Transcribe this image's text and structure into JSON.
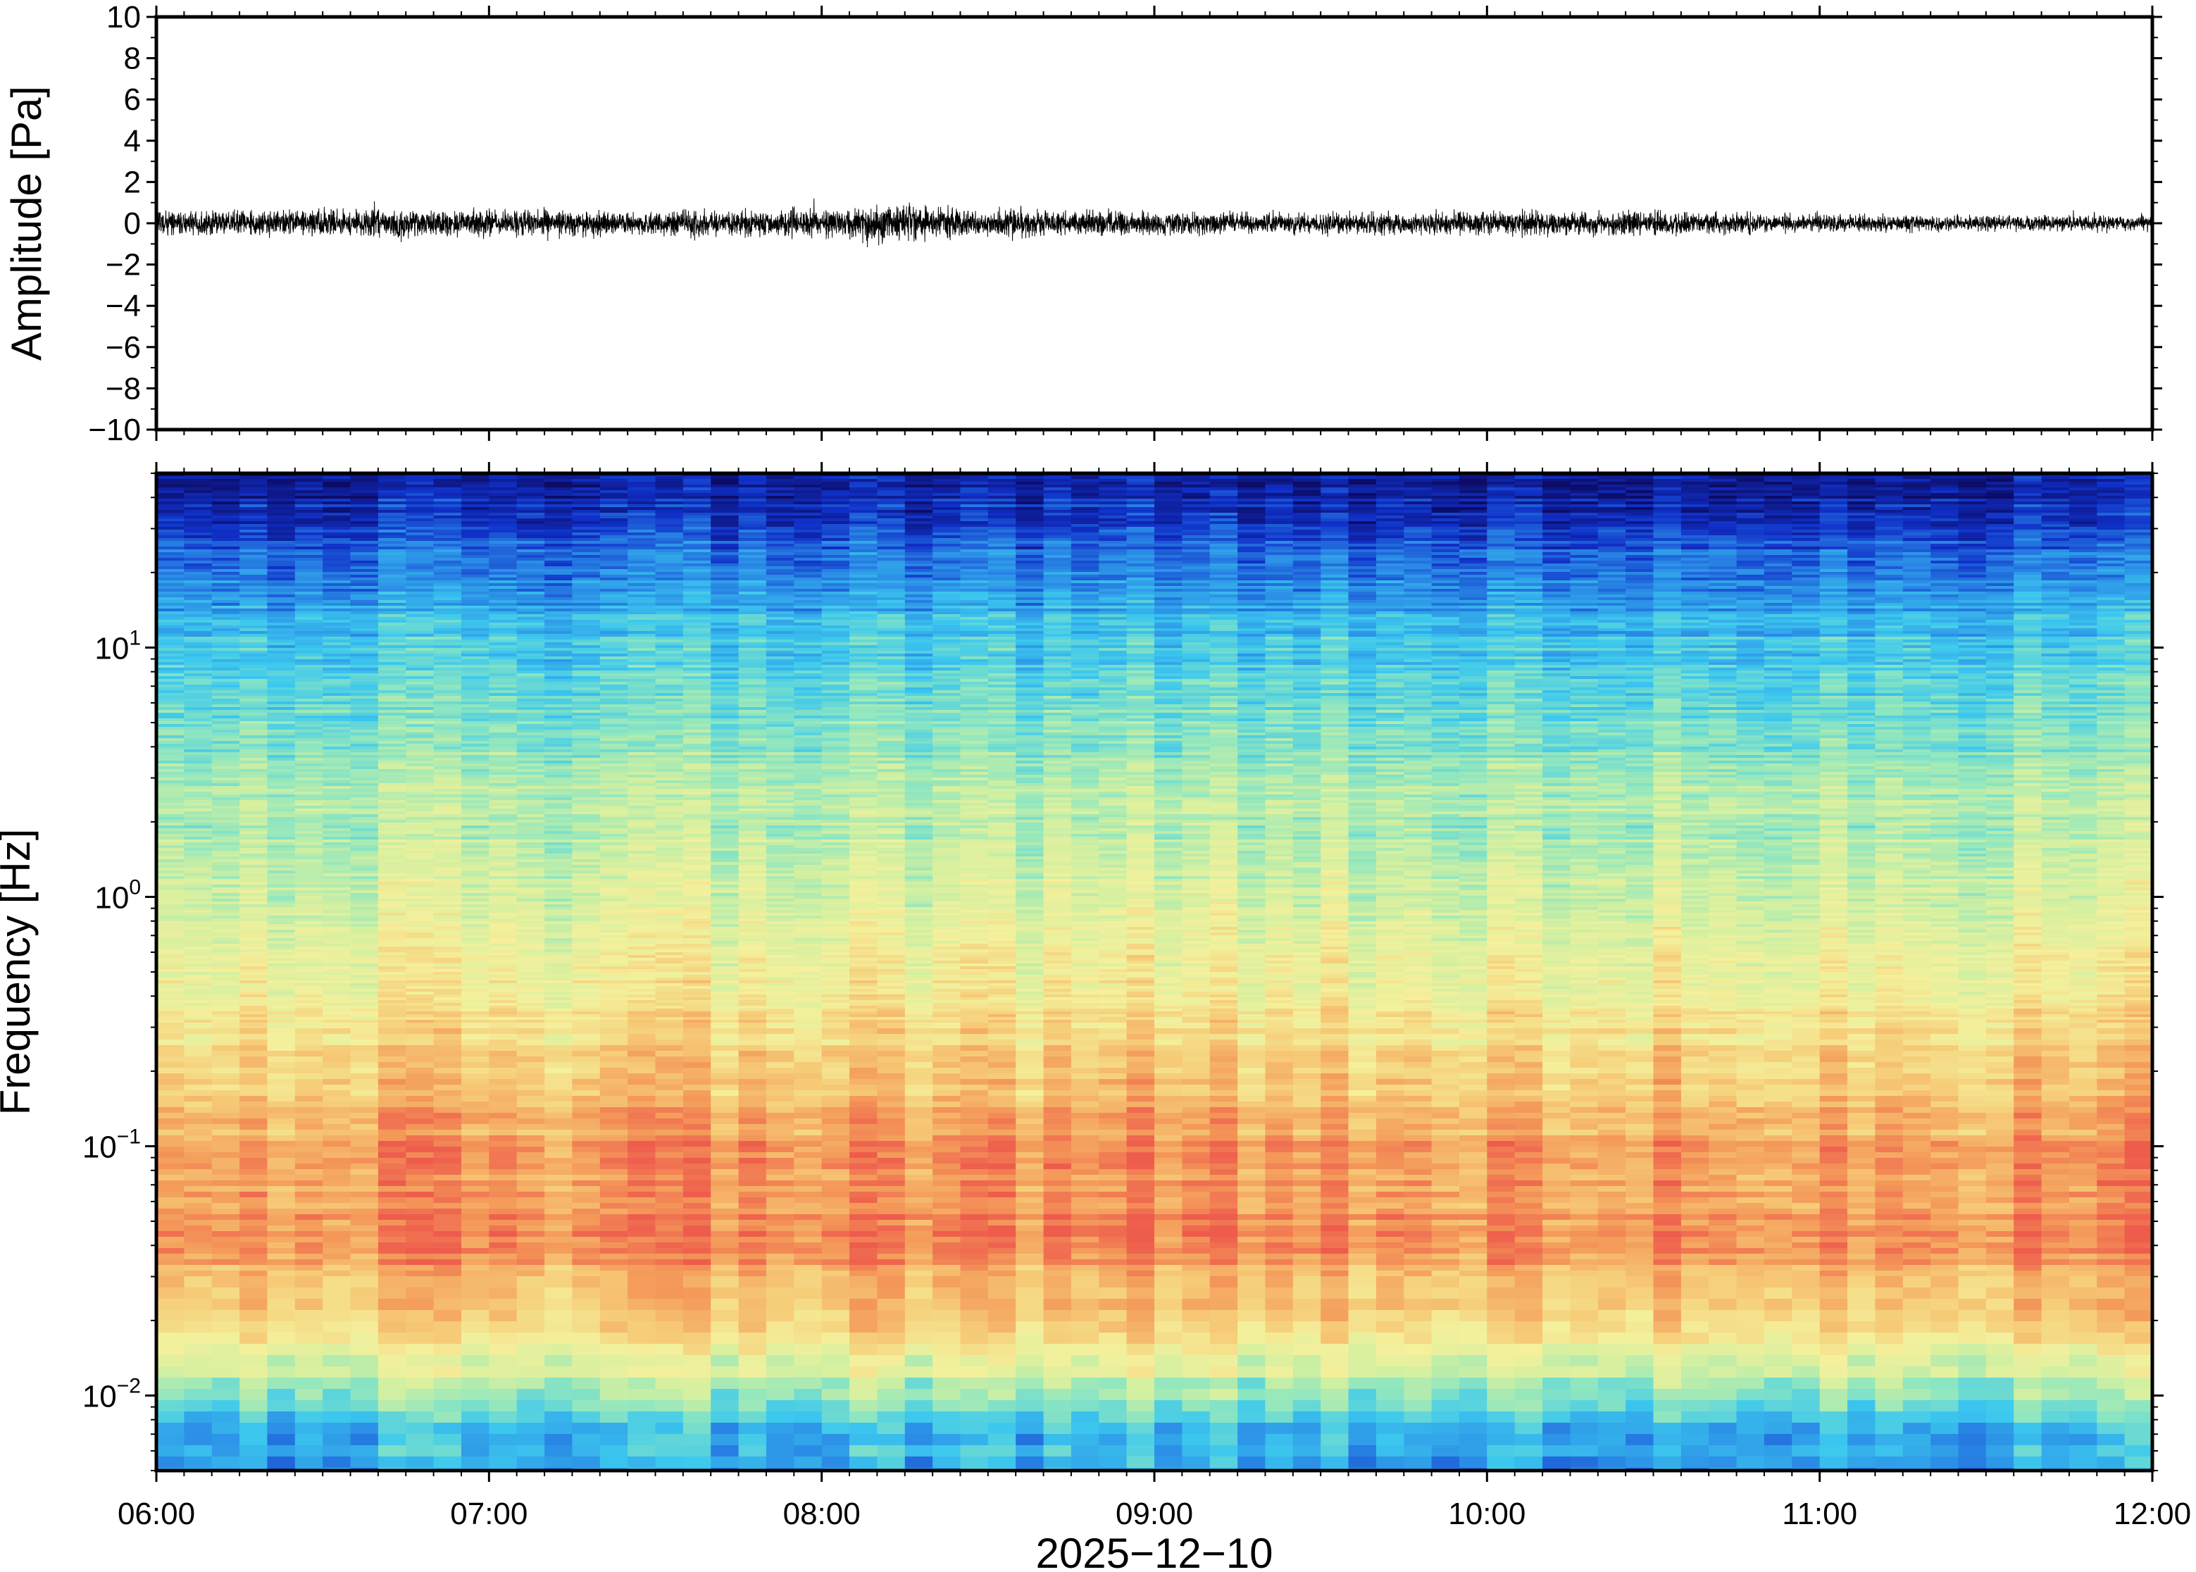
{
  "chart_data": [
    {
      "panel": "waveform",
      "type": "line",
      "ylabel": "Amplitude [Pa]",
      "xlim": [
        "06:00",
        "12:00"
      ],
      "ylim": [
        -10,
        10
      ],
      "yticks": [
        10,
        8,
        6,
        4,
        2,
        0,
        -2,
        -4,
        -6,
        -8,
        -10
      ],
      "ytick_labels": [
        "10",
        "8",
        "6",
        "4",
        "2",
        "0",
        "−2",
        "−4",
        "−6",
        "−8",
        "−10"
      ],
      "series": [
        {
          "color": "#000000",
          "noise_envelope_x": [
            "06:00",
            "06:30",
            "07:00",
            "07:30",
            "08:00",
            "08:10",
            "08:30",
            "09:00",
            "09:30",
            "10:00",
            "10:30",
            "11:00",
            "11:30",
            "12:00"
          ],
          "noise_envelope_y": [
            0.8,
            0.9,
            0.9,
            0.8,
            0.9,
            1.3,
            0.9,
            0.8,
            0.7,
            0.8,
            0.8,
            0.6,
            0.5,
            0.5
          ]
        }
      ]
    },
    {
      "panel": "spectrogram",
      "type": "heatmap",
      "ylabel": "Frequency [Hz]",
      "y_scale": "log",
      "ylim": [
        0.005,
        50
      ],
      "yticks": [
        10,
        1,
        0.1,
        0.01
      ],
      "ytick_labels": [
        {
          "base": "10",
          "exp": "1"
        },
        {
          "base": "10",
          "exp": "0"
        },
        {
          "base": "10",
          "exp": "−1"
        },
        {
          "base": "10",
          "exp": "−2"
        }
      ],
      "xlim": [
        "06:00",
        "12:00"
      ],
      "xticks": [
        "06:00",
        "07:00",
        "08:00",
        "09:00",
        "10:00",
        "11:00",
        "12:00"
      ],
      "xlabel": "2025−12−10",
      "colormap": [
        "#0c0c66",
        "#1030c8",
        "#2a8ae6",
        "#3cc8ee",
        "#8ee6c0",
        "#d4f0a0",
        "#f4f09c",
        "#f6cc78",
        "#f49a5a",
        "#ee5c4c"
      ],
      "relative_power_profile": {
        "frequency_hz": [
          0.005,
          0.008,
          0.012,
          0.02,
          0.04,
          0.1,
          0.3,
          1,
          3,
          10,
          20,
          35,
          50
        ],
        "level": [
          0.27,
          0.35,
          0.55,
          0.75,
          0.92,
          0.88,
          0.72,
          0.58,
          0.48,
          0.35,
          0.22,
          0.1,
          0.04
        ]
      }
    }
  ]
}
